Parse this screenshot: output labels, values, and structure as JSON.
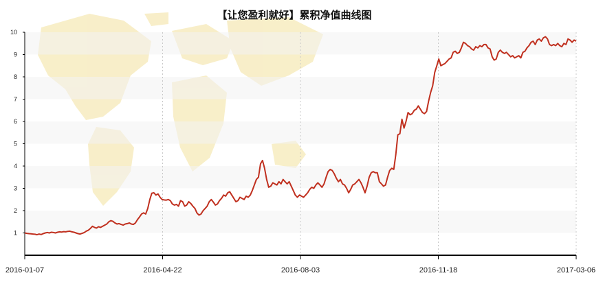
{
  "chart_data": {
    "type": "line",
    "title": "【让您盈利就好】累积净值曲线图",
    "xlabel": "",
    "ylabel": "",
    "x_tick_labels": [
      "2016-01-07",
      "2016-04-22",
      "2016-08-03",
      "2016-11-18",
      "2017-03-06"
    ],
    "y_ticks": [
      1,
      2,
      3,
      4,
      5,
      6,
      7,
      8,
      9,
      10
    ],
    "ylim": [
      0,
      10
    ],
    "grid": "vertical dashed at x ticks, horizontal alternating bands",
    "line_color": "#c0301f",
    "background": "faint world map",
    "series": [
      {
        "values": [
          1.0,
          0.98,
          0.97,
          0.96,
          0.95,
          0.94,
          0.92,
          0.95,
          0.93,
          0.97,
          1.0,
          1.02,
          1.0,
          1.03,
          1.02,
          1.0,
          1.03,
          1.05,
          1.04,
          1.06,
          1.05,
          1.07,
          1.08,
          1.05,
          1.03,
          1.0,
          0.97,
          0.95,
          0.98,
          1.02,
          1.08,
          1.12,
          1.2,
          1.3,
          1.25,
          1.22,
          1.28,
          1.25,
          1.3,
          1.35,
          1.4,
          1.5,
          1.55,
          1.52,
          1.45,
          1.4,
          1.42,
          1.38,
          1.35,
          1.4,
          1.42,
          1.45,
          1.4,
          1.38,
          1.45,
          1.6,
          1.72,
          1.85,
          1.9,
          1.85,
          2.1,
          2.5,
          2.78,
          2.8,
          2.7,
          2.75,
          2.6,
          2.5,
          2.48,
          2.47,
          2.5,
          2.45,
          2.3,
          2.25,
          2.28,
          2.2,
          2.45,
          2.4,
          2.2,
          2.25,
          2.4,
          2.32,
          2.2,
          2.1,
          1.9,
          1.8,
          1.85,
          2.0,
          2.1,
          2.2,
          2.4,
          2.5,
          2.38,
          2.25,
          2.3,
          2.45,
          2.55,
          2.7,
          2.65,
          2.8,
          2.85,
          2.7,
          2.55,
          2.4,
          2.45,
          2.6,
          2.55,
          2.5,
          2.65,
          2.6,
          2.7,
          2.9,
          3.15,
          3.4,
          3.5,
          4.1,
          4.25,
          3.9,
          3.4,
          3.05,
          3.1,
          3.25,
          3.2,
          3.15,
          3.3,
          3.2,
          3.4,
          3.3,
          3.2,
          3.3,
          3.1,
          2.9,
          2.7,
          2.6,
          2.7,
          2.65,
          2.6,
          2.7,
          2.8,
          2.95,
          3.05,
          3.0,
          3.15,
          3.25,
          3.15,
          3.05,
          3.2,
          3.5,
          3.75,
          3.85,
          3.8,
          3.65,
          3.45,
          3.3,
          3.4,
          3.2,
          3.15,
          3.0,
          2.8,
          2.95,
          3.15,
          3.2,
          3.3,
          3.4,
          3.25,
          3.05,
          2.8,
          3.1,
          3.5,
          3.7,
          3.75,
          3.7,
          3.7,
          3.3,
          3.2,
          3.1,
          3.15,
          3.5,
          3.8,
          3.9,
          3.85,
          4.5,
          5.4,
          5.45,
          6.1,
          5.7,
          6.0,
          6.4,
          6.3,
          6.35,
          6.5,
          6.55,
          6.7,
          6.55,
          6.4,
          6.35,
          6.45,
          6.9,
          7.3,
          7.6,
          8.2,
          8.5,
          8.8,
          8.5,
          8.55,
          8.6,
          8.7,
          8.8,
          8.85,
          9.1,
          9.15,
          9.05,
          9.1,
          9.3,
          9.55,
          9.5,
          9.4,
          9.35,
          9.25,
          9.2,
          9.35,
          9.3,
          9.4,
          9.35,
          9.45,
          9.45,
          9.3,
          9.25,
          8.9,
          8.75,
          8.8,
          9.1,
          9.2,
          9.1,
          9.05,
          9.1,
          9.0,
          8.9,
          8.95,
          8.85,
          8.9,
          8.95,
          8.85,
          9.1,
          9.15,
          9.3,
          9.4,
          9.55,
          9.6,
          9.45,
          9.65,
          9.7,
          9.6,
          9.75,
          9.8,
          9.7,
          9.45,
          9.4,
          9.45,
          9.4,
          9.5,
          9.4,
          9.35,
          9.5,
          9.45,
          9.7,
          9.65,
          9.55,
          9.65,
          9.6
        ]
      }
    ]
  }
}
